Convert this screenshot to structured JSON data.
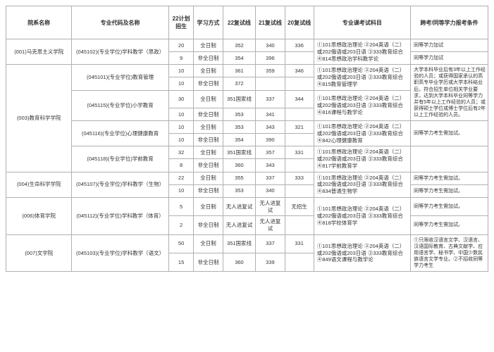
{
  "headers": {
    "dept": "院系名称",
    "major": "专业代码及名称",
    "plan": "22计划招生",
    "mode": "学习方式",
    "s22": "22复试线",
    "s21": "21复试线",
    "s20": "20复试线",
    "exam": "专业课考试科目",
    "note": "跨考/同等学力报考条件"
  },
  "modes": {
    "full": "全日制",
    "part": "非全日制"
  },
  "scores": {
    "national": "351国家线",
    "noCandidate": "无人进复试",
    "noEnroll": "无招生"
  },
  "depts": {
    "d001": "(001)马克思主义学院",
    "d003": "(003)教育科学学院",
    "d004": "(004)生命科学学院",
    "d006": "(006)体育学院",
    "d007": "(007)文学院"
  },
  "majors": {
    "m045102": "(045102)(专业学位)学科教学（思政）",
    "m045101": "(045101)(专业学位)教育管理",
    "m045115": "(045115)(专业学位)小学教育",
    "m045116": "(045116)(专业学位)心理健康教育",
    "m045118": "(045118)(专业学位)学前教育",
    "m045107": "(045107)(专业学位)学科教学（生物）",
    "m045112": "(045112)(专业学位)学科教学（体育）",
    "m045103": "(045103)(专业学位)学科教学（语文）"
  },
  "rows": {
    "r1": {
      "plan": "20",
      "s22": "352",
      "s21": "340",
      "s20": "336"
    },
    "r2": {
      "plan": "9",
      "s22": "354",
      "s21": "396",
      "s20": ""
    },
    "r3": {
      "plan": "10",
      "s22": "361",
      "s21": "359",
      "s20": "346"
    },
    "r4": {
      "plan": "10",
      "s22": "372",
      "s21": "",
      "s20": ""
    },
    "r5": {
      "plan": "30",
      "s21": "337",
      "s20": "344"
    },
    "r6": {
      "plan": "10",
      "s22": "353",
      "s21": "341",
      "s20": ""
    },
    "r7": {
      "plan": "10",
      "s22": "353",
      "s21": "343",
      "s20": "321"
    },
    "r8": {
      "plan": "10",
      "s22": "354",
      "s21": "390",
      "s20": ""
    },
    "r9": {
      "plan": "32",
      "s21": "357",
      "s20": "331"
    },
    "r10": {
      "plan": "8",
      "s22": "360",
      "s21": "343",
      "s20": ""
    },
    "r11": {
      "plan": "22",
      "s22": "355",
      "s21": "337",
      "s20": "333"
    },
    "r12": {
      "plan": "10",
      "s22": "353",
      "s21": "340",
      "s20": ""
    },
    "r13": {
      "plan": "5"
    },
    "r14": {
      "plan": "2"
    },
    "r15": {
      "plan": "50",
      "s21": "337",
      "s20": "331"
    },
    "r16": {
      "plan": "15",
      "s22": "360",
      "s21": "339",
      "s20": ""
    }
  },
  "exams": {
    "e1": "①101思想政治理论\n②204英语（二）或202俄语或203日语\n③333教育综合\n④814思想政治学科教学论",
    "e2": "①101思想政治理论\n②204英语（二）或202俄语或203日语\n③333教育综合\n④815教育管理学",
    "e3": "①101思想政治理论\n②204英语（二）或202俄语或203日语\n③333教育综合\n④816课程与教学论",
    "e4": "①101思想政治理论\n②204英语（二）或202俄语或203日语\n③333教育综合\n④842心理健康教育",
    "e5": "①101思想政治理论\n②204英语（二）或202俄语或203日语\n③333教育综合\n④817学前教育学",
    "e6": "①101思想政治理论\n②204英语（二）或202俄语或203日语\n③333教育综合\n④834普通生物学",
    "e7": "①101思想政治理论\n②204英语（二）或202俄语或203日语\n③333教育综合\n④818学校体育学",
    "e8": "①101思想政治理论\n②204英语（二）或202俄语或203日语\n③333教育综合\n④849语文课程与教学论"
  },
  "notes": {
    "n1": "同等学力加试",
    "n2": "大学本科毕业后有3年以上工作经验的人员；或获得国家承认的高职高专毕业学历或大学本科结业后，符合招生单位相关学业要求，达到大学本科毕业同等学力并有5年以上工作经验的人员；或获得硕士学位或博士学位后有2年以上工作经验的人员。",
    "n3": "同等学力考生需加试。",
    "n4": "①只限收汉语言文学、汉语言、汉语国际教育、古典文献学、应用语言学、秘书学、中国少数民族语言文学专业。②不招收同等学力考生"
  }
}
